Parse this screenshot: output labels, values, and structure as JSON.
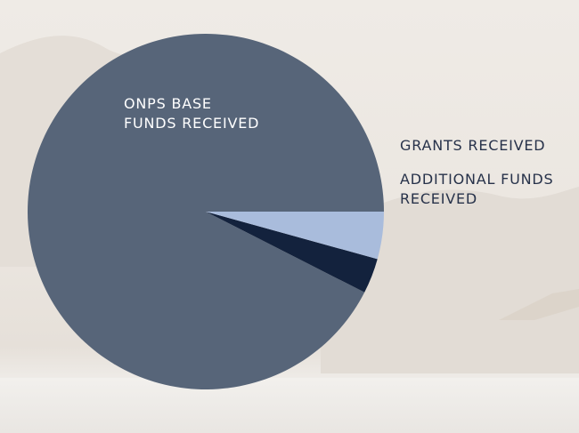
{
  "chart_data": {
    "type": "pie",
    "title": "",
    "slices": [
      {
        "label": "ONPS BASE\nFUNDS RECEIVED",
        "value": 0.925,
        "color": "#576579"
      },
      {
        "label": "GRANTS RECEIVED",
        "value": 0.032,
        "color": "#13223d"
      },
      {
        "label": "ADDITIONAL FUNDS\nRECEIVED",
        "value": 0.043,
        "color": "#a9bcdc"
      }
    ]
  }
}
